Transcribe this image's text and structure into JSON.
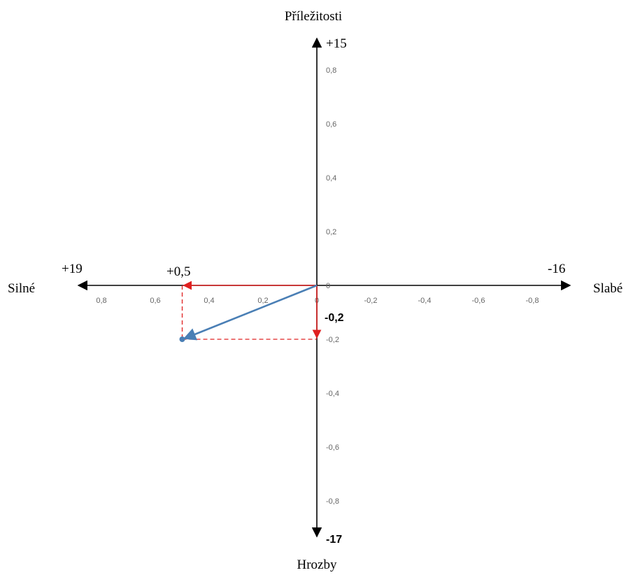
{
  "axes": {
    "top_label": "Příležitosti",
    "bottom_label": "Hrozby",
    "left_label": "Silné",
    "right_label": "Slabé",
    "top_value": "+15",
    "bottom_value": "-17",
    "left_value": "+19",
    "right_value": "-16"
  },
  "result": {
    "x_label": "+0,5",
    "y_label": "-0,2",
    "x": 0.5,
    "y": -0.2
  },
  "ticks": {
    "x": [
      {
        "value": 0.8,
        "label": "0,8"
      },
      {
        "value": 0.6,
        "label": "0,6"
      },
      {
        "value": 0.4,
        "label": "0,4"
      },
      {
        "value": 0.2,
        "label": "0,2"
      },
      {
        "value": 0,
        "label": "0"
      },
      {
        "value": -0.2,
        "label": "-0,2"
      },
      {
        "value": -0.4,
        "label": "-0,4"
      },
      {
        "value": -0.6,
        "label": "-0,6"
      },
      {
        "value": -0.8,
        "label": "-0,8"
      }
    ],
    "y": [
      {
        "value": 0.8,
        "label": "0,8"
      },
      {
        "value": 0.6,
        "label": "0,6"
      },
      {
        "value": 0.4,
        "label": "0,4"
      },
      {
        "value": 0.2,
        "label": "0,2"
      },
      {
        "value": 0,
        "label": "0"
      },
      {
        "value": -0.2,
        "label": "-0,2"
      },
      {
        "value": -0.4,
        "label": "-0,4"
      },
      {
        "value": -0.6,
        "label": "-0,6"
      },
      {
        "value": -0.8,
        "label": "-0,8"
      }
    ]
  },
  "colors": {
    "axis": "#000000",
    "vector": "#4a7fb5",
    "projection": "#e02020"
  }
}
